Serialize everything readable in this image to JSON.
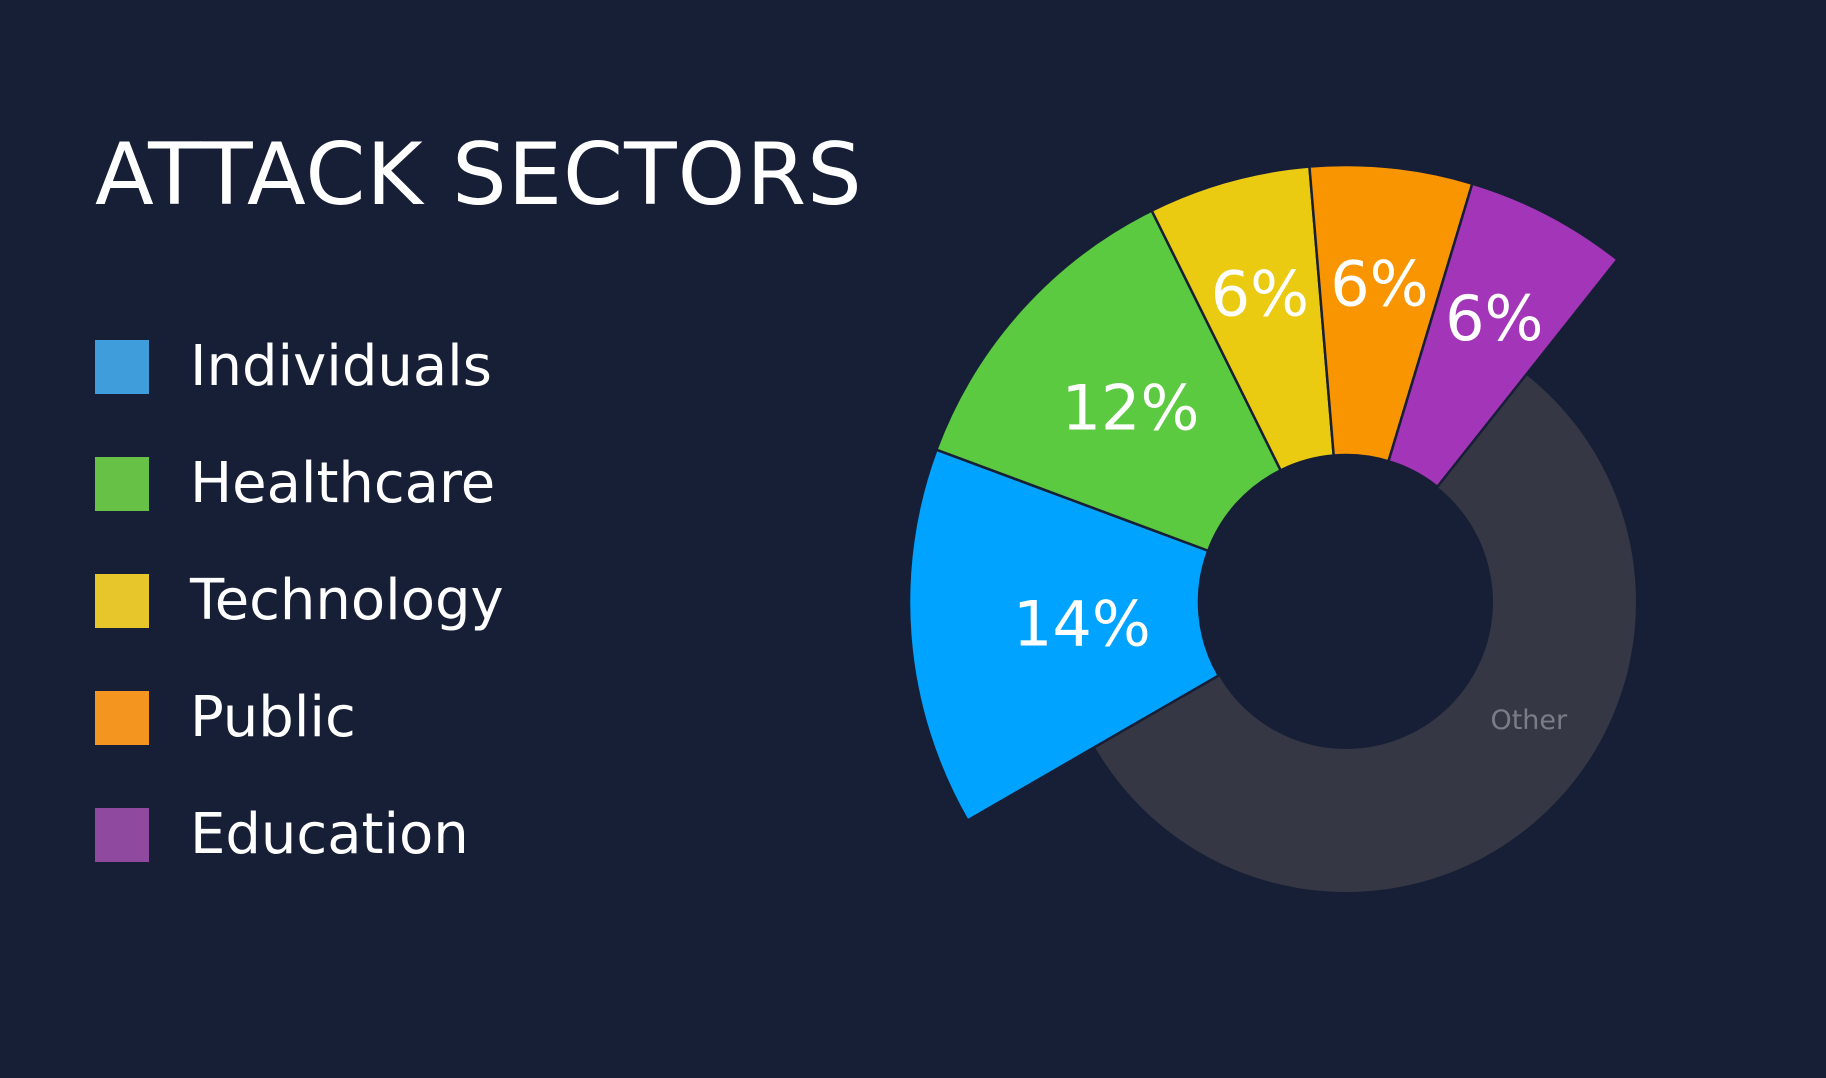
{
  "chart_data": {
    "type": "pie",
    "title": "ATTACK SECTORS",
    "legend_position": "left",
    "categories": [
      "Individuals",
      "Healthcare",
      "Technology",
      "Public",
      "Education"
    ],
    "series": [
      {
        "values": [
          14,
          12,
          6,
          6,
          6
        ],
        "labels": [
          "14%",
          "12%",
          "6%",
          "6%",
          "6%"
        ]
      }
    ],
    "colors": [
      "#00a3ff",
      "#5cca40",
      "#ebca12",
      "#f89500",
      "#a336b8"
    ],
    "legend_colors": [
      "#3f9ddc",
      "#67c147",
      "#e6c62a",
      "#f3951e",
      "#8f4aa0"
    ],
    "other": {
      "label": "Other",
      "value": 56,
      "color": "#363744"
    },
    "start_angle_deg": 240
  }
}
